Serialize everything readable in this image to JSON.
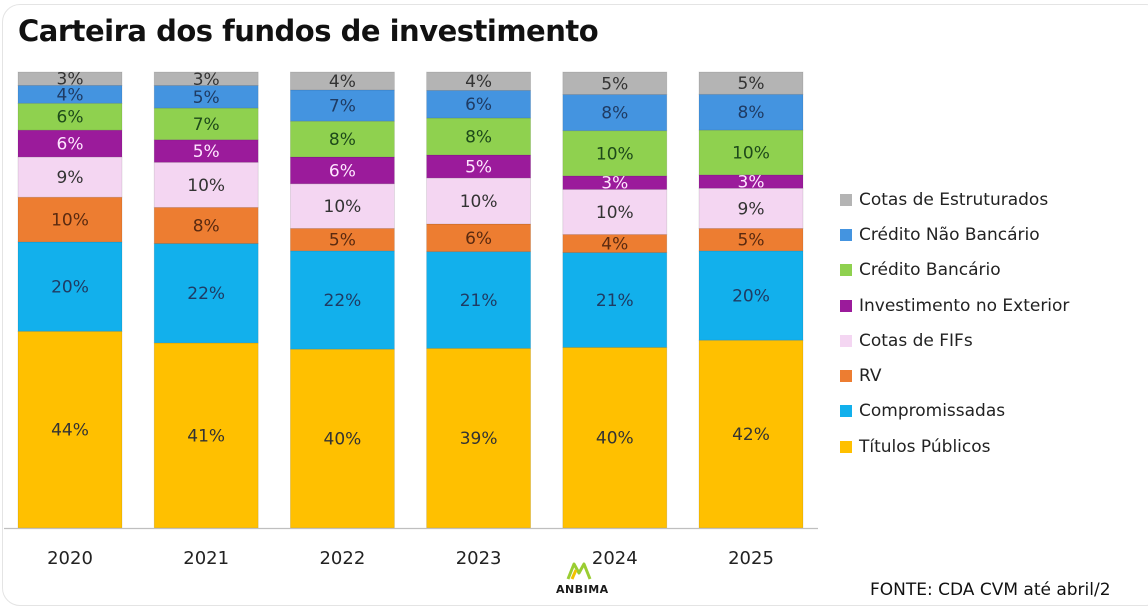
{
  "chart_data": {
    "type": "bar",
    "stacked": true,
    "normalized": true,
    "title": "Carteira dos fundos de investimento",
    "xlabel": "",
    "ylabel": "",
    "ylim": [
      0,
      100
    ],
    "grid": false,
    "legend_position": "right",
    "categories": [
      "2020",
      "2021",
      "2022",
      "2023",
      "2024",
      "2025"
    ],
    "series": [
      {
        "name": "Títulos Públicos",
        "color": "#FFC000",
        "label_color": "#333333",
        "values": [
          44,
          41,
          40,
          39,
          40,
          42
        ]
      },
      {
        "name": "Compromissadas",
        "color": "#12B0EC",
        "label_color": "#1F3B63",
        "values": [
          20,
          22,
          22,
          21,
          21,
          20
        ]
      },
      {
        "name": "RV",
        "color": "#ED7D31",
        "label_color": "#5A2A10",
        "values": [
          10,
          8,
          5,
          6,
          4,
          5
        ]
      },
      {
        "name": "Cotas de FIFs",
        "color": "#F4D6F2",
        "label_color": "#333333",
        "values": [
          9,
          10,
          10,
          10,
          10,
          9
        ]
      },
      {
        "name": "Investimento no Exterior",
        "color": "#9B1B9B",
        "label_color": "#FFE6FF",
        "values": [
          6,
          5,
          6,
          5,
          3,
          3
        ]
      },
      {
        "name": "Crédito Bancário",
        "color": "#8FD14F",
        "label_color": "#1E4A1A",
        "values": [
          6,
          7,
          8,
          8,
          10,
          10
        ]
      },
      {
        "name": "Crédito Não Bancário",
        "color": "#4494E0",
        "label_color": "#1F3B63",
        "values": [
          4,
          5,
          7,
          6,
          8,
          8
        ]
      },
      {
        "name": "Cotas de Estruturados",
        "color": "#B4B4B4",
        "label_color": "#333333",
        "values": [
          3,
          3,
          4,
          4,
          5,
          5
        ]
      }
    ],
    "legend_order": [
      "Cotas de Estruturados",
      "Crédito Não Bancário",
      "Crédito Bancário",
      "Investimento no Exterior",
      "Cotas de FIFs",
      "RV",
      "Compromissadas",
      "Títulos Públicos"
    ],
    "value_format": "{v}%"
  },
  "footer": {
    "source": "FONTE: CDA CVM até abril/2",
    "logo_text": "ANBIMA"
  }
}
